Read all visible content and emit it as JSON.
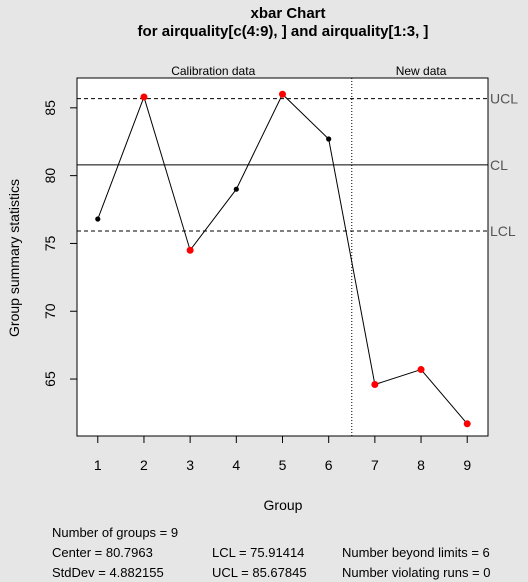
{
  "chart_data": {
    "type": "line",
    "title": "xbar Chart",
    "subtitle": "for airquality[c(4:9), ] and airquality[1:3, ]",
    "xlabel": "Group",
    "ylabel": "Group summary statistics",
    "x_ticks": [
      "1",
      "2",
      "3",
      "4",
      "5",
      "6",
      "7",
      "8",
      "9"
    ],
    "y_ticks": [
      65,
      70,
      75,
      80,
      85
    ],
    "xlim": [
      0.55,
      9.45
    ],
    "ylim": [
      60.8,
      87.2
    ],
    "sections": [
      {
        "label": "Calibration data",
        "from": 1,
        "to": 6
      },
      {
        "label": "New data",
        "from": 7,
        "to": 9
      }
    ],
    "separator_x": 6.5,
    "limits": [
      {
        "label": "UCL",
        "value": 85.67845,
        "style": "dashed"
      },
      {
        "label": "CL",
        "value": 80.7963,
        "style": "solid"
      },
      {
        "label": "LCL",
        "value": 75.91414,
        "style": "dashed"
      }
    ],
    "series": [
      {
        "x": [
          1,
          2,
          3,
          4,
          5,
          6,
          7,
          8,
          9
        ],
        "values": [
          76.8,
          85.8,
          74.5,
          79.0,
          86.0,
          82.7,
          64.6,
          65.7,
          61.7
        ],
        "out_of_control": [
          false,
          true,
          true,
          false,
          true,
          false,
          true,
          true,
          true
        ]
      }
    ],
    "grid": false,
    "colors": {
      "point": "#000000",
      "violation": "#ff0000",
      "limit_label": "#555555"
    }
  },
  "stats": {
    "groups": "Number of groups = 9",
    "center": "Center = 80.7963",
    "stddev": "StdDev = 4.882155",
    "lcl": "LCL = 75.91414",
    "ucl": "UCL = 85.67845",
    "beyond": "Number beyond limits = 6",
    "violating": "Number violating runs = 0"
  }
}
